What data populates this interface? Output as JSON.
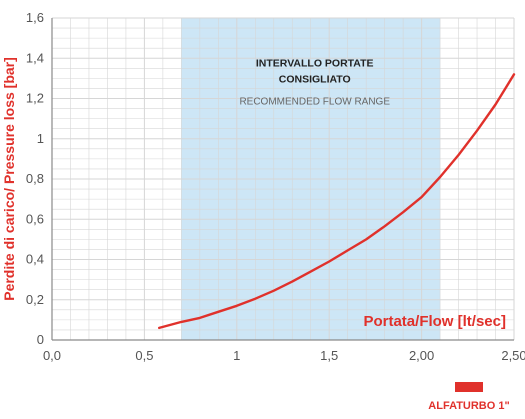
{
  "chart_data": {
    "type": "line",
    "xlabel": "Portata/Flow [lt/sec]",
    "ylabel": "Perdite di carico/ Pressure loss [bar]",
    "xlim": [
      0,
      2.5
    ],
    "ylim": [
      0,
      1.6
    ],
    "x_ticks": [
      "0,0",
      "0,5",
      "1",
      "1,5",
      "2,00",
      "2,50"
    ],
    "y_ticks": [
      "0",
      "0,2",
      "0,4",
      "0,6",
      "0,8",
      "1",
      "1,2",
      "1,4",
      "1,6"
    ],
    "grid": true,
    "range_band": {
      "x_start": 0.7,
      "x_end": 2.1,
      "label_line1": "INTERVALLO PORTATE",
      "label_line2": "CONSIGLIATO",
      "label_line3": "RECOMMENDED FLOW RANGE"
    },
    "series": [
      {
        "name": "ALFATURBO 1\"",
        "color": "#e0312b",
        "x": [
          0.58,
          0.7,
          0.8,
          0.9,
          1.0,
          1.1,
          1.2,
          1.3,
          1.4,
          1.5,
          1.6,
          1.7,
          1.8,
          1.9,
          2.0,
          2.1,
          2.2,
          2.3,
          2.4,
          2.5
        ],
        "y": [
          0.06,
          0.09,
          0.11,
          0.14,
          0.17,
          0.205,
          0.245,
          0.29,
          0.34,
          0.39,
          0.445,
          0.5,
          0.565,
          0.635,
          0.71,
          0.81,
          0.92,
          1.04,
          1.17,
          1.32
        ]
      }
    ],
    "legend": {
      "position": "bottom-right",
      "label": "ALFATURBO 1\""
    }
  },
  "colors": {
    "accent": "#e0312b",
    "band": "#cde6f6",
    "grid": "#d6d6d6",
    "axis": "#8a8a8a"
  }
}
